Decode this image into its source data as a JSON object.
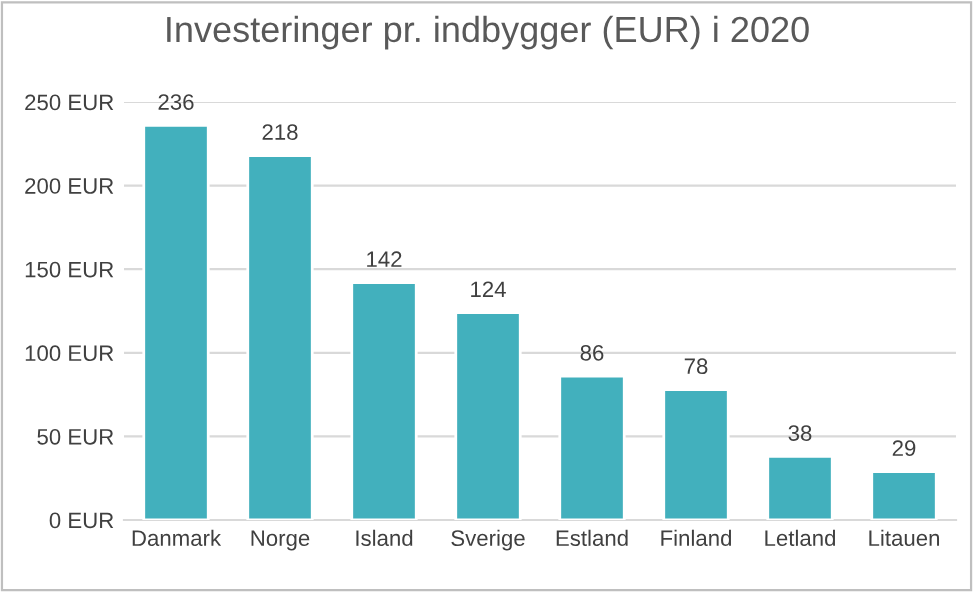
{
  "chart_data": {
    "type": "bar",
    "title": "Investeringer pr. indbygger (EUR) i 2020",
    "categories": [
      "Danmark",
      "Norge",
      "Island",
      "Sverige",
      "Estland",
      "Finland",
      "Letland",
      "Litauen"
    ],
    "values": [
      236,
      218,
      142,
      124,
      86,
      78,
      38,
      29
    ],
    "color": "#42b0bd",
    "ylim": [
      0,
      250
    ],
    "yticks": [
      {
        "value": 0,
        "label": "0 EUR"
      },
      {
        "value": 50,
        "label": "50 EUR"
      },
      {
        "value": 100,
        "label": "100 EUR"
      },
      {
        "value": 150,
        "label": "150 EUR"
      },
      {
        "value": 200,
        "label": "200 EUR"
      },
      {
        "value": 250,
        "label": "250 EUR"
      }
    ],
    "grid": "y",
    "data_labels": true
  }
}
